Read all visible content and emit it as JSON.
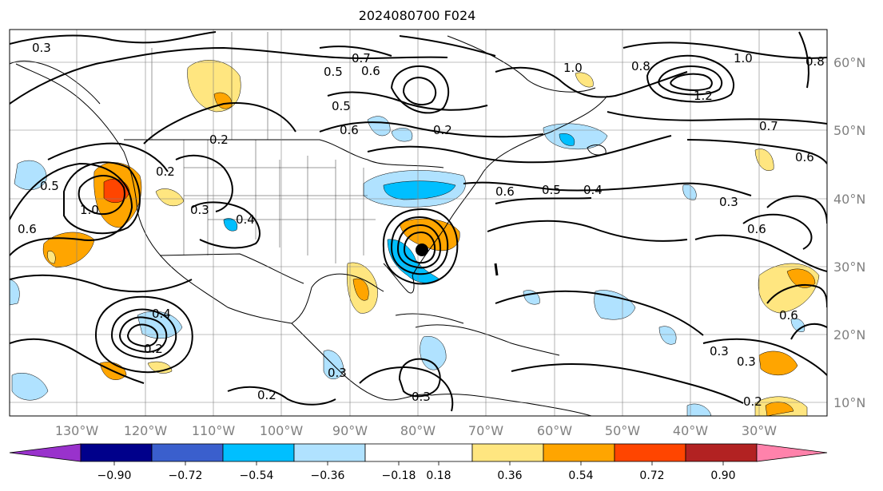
{
  "title": "2024080700 F024",
  "map": {
    "lon_labels": [
      "130°W",
      "120°W",
      "110°W",
      "100°W",
      "90°W",
      "80°W",
      "70°W",
      "60°W",
      "50°W",
      "40°W",
      "30°W"
    ],
    "lat_labels": [
      "60°N",
      "50°N",
      "40°N",
      "30°N",
      "20°N",
      "10°N"
    ]
  },
  "colorbar": {
    "ticks": [
      "−0.90",
      "−0.72",
      "−0.54",
      "−0.36",
      "−0.18",
      "0.18",
      "0.36",
      "0.54",
      "0.72",
      "0.90"
    ],
    "colors": [
      "#9932cc",
      "#00008b",
      "#3a5fcd",
      "#00bfff",
      "#b0e2ff",
      "#ffffff",
      "#ffe680",
      "#ffa500",
      "#ff4500",
      "#b22222",
      "#ff82ab"
    ]
  },
  "contour_labels": [
    "0.3",
    "0.7",
    "0.6",
    "0.5",
    "0.5",
    "0.6",
    "1.0",
    "0.8",
    "0.8",
    "1.0",
    "1.2",
    "0.7",
    "0.6",
    "0.2",
    "0.6",
    "0.5",
    "0.4",
    "0.3",
    "0.6",
    "0.2",
    "0.2",
    "0.3",
    "0.4",
    "0.5",
    "0.6",
    "1.0",
    "0.4",
    "0.2",
    "0.3",
    "0.2",
    "0.3",
    "0.6",
    "0.3",
    "0.3",
    "0.2"
  ]
}
